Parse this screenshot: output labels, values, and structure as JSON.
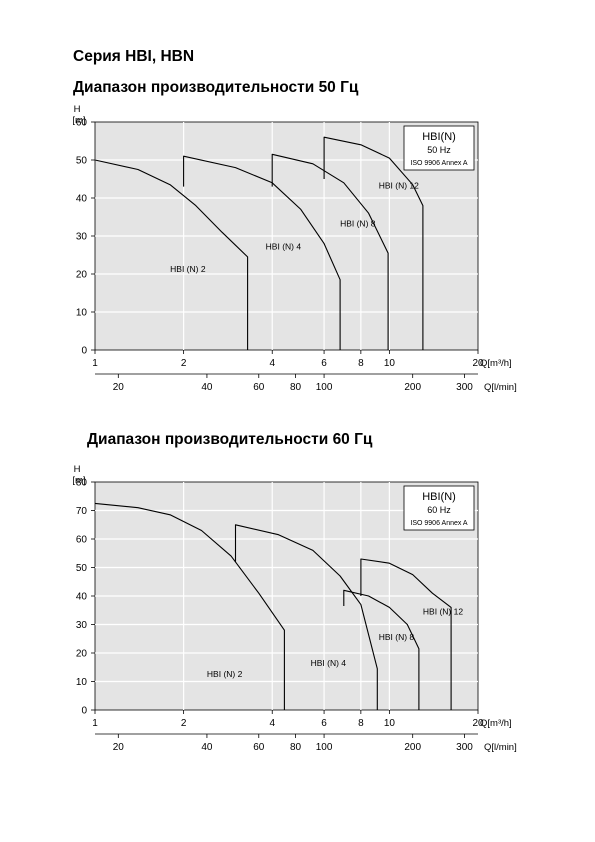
{
  "header": {
    "series_title": "Серия HBI, HBN",
    "heading_50": "Диапазон производительности 50 Гц",
    "heading_60": "Диапазон производительности 60 Гц"
  },
  "colors": {
    "plot_background": "#e4e4e4",
    "curve": "#000000",
    "grid": "#ffffff"
  },
  "chart_data": [
    {
      "type": "line",
      "x_scale": "log",
      "xlim": [
        1,
        20
      ],
      "ylim": [
        0,
        60
      ],
      "x_ticks": [
        "1",
        "2",
        "4",
        "6",
        "8",
        "10",
        "20"
      ],
      "y_ticks": [
        "0",
        "10",
        "20",
        "30",
        "40",
        "50",
        "60"
      ],
      "y_axis_label_symbol": "H",
      "y_axis_unit": "[m]",
      "x_axis_label": "Q[m³/h]",
      "secondary_x_label": "Q[l/min]",
      "secondary_x_ticks": [
        {
          "label": "20",
          "lpm": 20
        },
        {
          "label": "40",
          "lpm": 40
        },
        {
          "label": "60",
          "lpm": 60
        },
        {
          "label": "80",
          "lpm": 80
        },
        {
          "label": "100",
          "lpm": 100
        },
        {
          "label": "200",
          "lpm": 200
        },
        {
          "label": "300",
          "lpm": 300
        }
      ],
      "legend_box": {
        "title": "HBI(N)",
        "freq": "50 Hz",
        "standard": "ISO 9906 Annex A",
        "placement": "top-right"
      },
      "grid": true,
      "series": [
        {
          "name": "HBI (N) 2",
          "label_pos": [
            1.8,
            20.5
          ],
          "points": [
            [
              1.0,
              50
            ],
            [
              1.4,
              47.5
            ],
            [
              1.8,
              43.5
            ],
            [
              2.2,
              38
            ],
            [
              2.7,
              31
            ],
            [
              3.3,
              24.5
            ],
            [
              3.3,
              0
            ]
          ]
        },
        {
          "name": "HBI (N) 4",
          "label_pos": [
            3.8,
            26.5
          ],
          "points": [
            [
              2.0,
              43
            ],
            [
              2.0,
              51
            ],
            [
              3.0,
              48
            ],
            [
              4.0,
              44
            ],
            [
              5.0,
              37
            ],
            [
              6.0,
              28
            ],
            [
              6.8,
              18.5
            ],
            [
              6.8,
              0
            ]
          ]
        },
        {
          "name": "HBI (N) 8",
          "label_pos": [
            6.8,
            32.5
          ],
          "points": [
            [
              4.0,
              43
            ],
            [
              4.0,
              51.5
            ],
            [
              5.5,
              49
            ],
            [
              7.0,
              44
            ],
            [
              8.5,
              36
            ],
            [
              9.9,
              25.5
            ],
            [
              9.9,
              0
            ]
          ]
        },
        {
          "name": "HBI (N) 12",
          "label_pos": [
            9.2,
            42.5
          ],
          "points": [
            [
              6.0,
              45
            ],
            [
              6.0,
              56
            ],
            [
              8.0,
              54
            ],
            [
              10.0,
              50.5
            ],
            [
              12.0,
              43.5
            ],
            [
              13.0,
              38
            ],
            [
              13.0,
              0
            ]
          ]
        }
      ]
    },
    {
      "type": "line",
      "x_scale": "log",
      "xlim": [
        1,
        20
      ],
      "ylim": [
        0,
        80
      ],
      "x_ticks": [
        "1",
        "2",
        "4",
        "6",
        "8",
        "10",
        "20"
      ],
      "y_ticks": [
        "0",
        "10",
        "20",
        "30",
        "40",
        "50",
        "60",
        "70",
        "80"
      ],
      "y_axis_label_symbol": "H",
      "y_axis_unit": "[m]",
      "x_axis_label": "Q[m³/h]",
      "secondary_x_label": "Q[l/min]",
      "secondary_x_ticks": [
        {
          "label": "20",
          "lpm": 20
        },
        {
          "label": "40",
          "lpm": 40
        },
        {
          "label": "60",
          "lpm": 60
        },
        {
          "label": "80",
          "lpm": 80
        },
        {
          "label": "100",
          "lpm": 100
        },
        {
          "label": "200",
          "lpm": 200
        },
        {
          "label": "300",
          "lpm": 300
        }
      ],
      "legend_box": {
        "title": "HBI(N)",
        "freq": "60 Hz",
        "standard": "ISO 9906 Annex A",
        "placement": "top-right"
      },
      "grid": true,
      "series": [
        {
          "name": "HBI (N) 2",
          "label_pos": [
            2.4,
            11.5
          ],
          "points": [
            [
              1.0,
              72.5
            ],
            [
              1.4,
              71
            ],
            [
              1.8,
              68.5
            ],
            [
              2.3,
              63
            ],
            [
              2.9,
              54
            ],
            [
              3.6,
              41
            ],
            [
              4.4,
              28
            ],
            [
              4.4,
              0
            ]
          ]
        },
        {
          "name": "HBI (N) 4",
          "label_pos": [
            5.4,
            15.5
          ],
          "points": [
            [
              3.0,
              52
            ],
            [
              3.0,
              65
            ],
            [
              4.2,
              61.5
            ],
            [
              5.5,
              56
            ],
            [
              6.8,
              47
            ],
            [
              8.0,
              37
            ],
            [
              9.1,
              14.5
            ],
            [
              9.1,
              0
            ]
          ]
        },
        {
          "name": "HBI (N) 8",
          "label_pos": [
            9.2,
            24.5
          ],
          "points": [
            [
              7.0,
              36.5
            ],
            [
              7.0,
              42
            ],
            [
              8.5,
              40
            ],
            [
              10.0,
              36
            ],
            [
              11.5,
              30
            ],
            [
              12.6,
              21.5
            ],
            [
              12.6,
              0
            ]
          ]
        },
        {
          "name": "HBI (N) 12",
          "label_pos": [
            13.0,
            33.5
          ],
          "points": [
            [
              8.0,
              40
            ],
            [
              8.0,
              53
            ],
            [
              10.0,
              51.5
            ],
            [
              12.0,
              47.5
            ],
            [
              14.0,
              41
            ],
            [
              16.2,
              36
            ],
            [
              16.2,
              0
            ]
          ]
        }
      ]
    }
  ]
}
